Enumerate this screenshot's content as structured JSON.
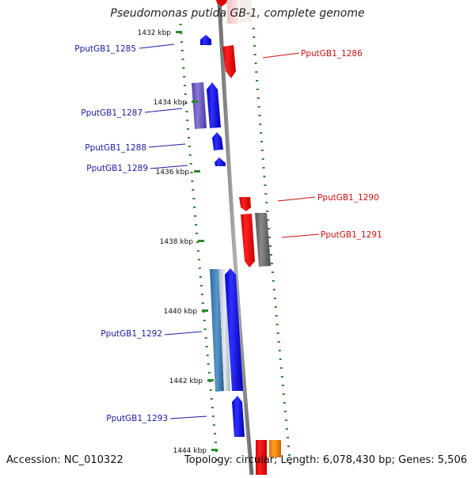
{
  "title": "Pseudomonas putida GB-1, complete genome",
  "footer": {
    "accession": "Accession: NC_010322",
    "summary": "Topology: circular; Length: 6,078,430 bp; Genes: 5,506"
  },
  "colors": {
    "backbone": "#8c8c8c",
    "tick": "#2a8a2a",
    "forward_label": "#1a1aa0",
    "reverse_label": "#cc1111"
  },
  "ticks": [
    {
      "label": "1432 kbp"
    },
    {
      "label": "1434 kbp"
    },
    {
      "label": "1436 kbp"
    },
    {
      "label": "1438 kbp"
    },
    {
      "label": "1440 kbp"
    },
    {
      "label": "1442 kbp"
    },
    {
      "label": "1444 kbp"
    }
  ],
  "gene_labels": [
    {
      "text": "PputGB1_1285",
      "strand": "forward"
    },
    {
      "text": "PputGB1_1286",
      "strand": "reverse"
    },
    {
      "text": "PputGB1_1287",
      "strand": "forward"
    },
    {
      "text": "PputGB1_1288",
      "strand": "forward"
    },
    {
      "text": "PputGB1_1289",
      "strand": "forward"
    },
    {
      "text": "PputGB1_1290",
      "strand": "reverse"
    },
    {
      "text": "PputGB1_1291",
      "strand": "reverse"
    },
    {
      "text": "PputGB1_1292",
      "strand": "forward"
    },
    {
      "text": "PputGB1_1293",
      "strand": "forward"
    }
  ]
}
